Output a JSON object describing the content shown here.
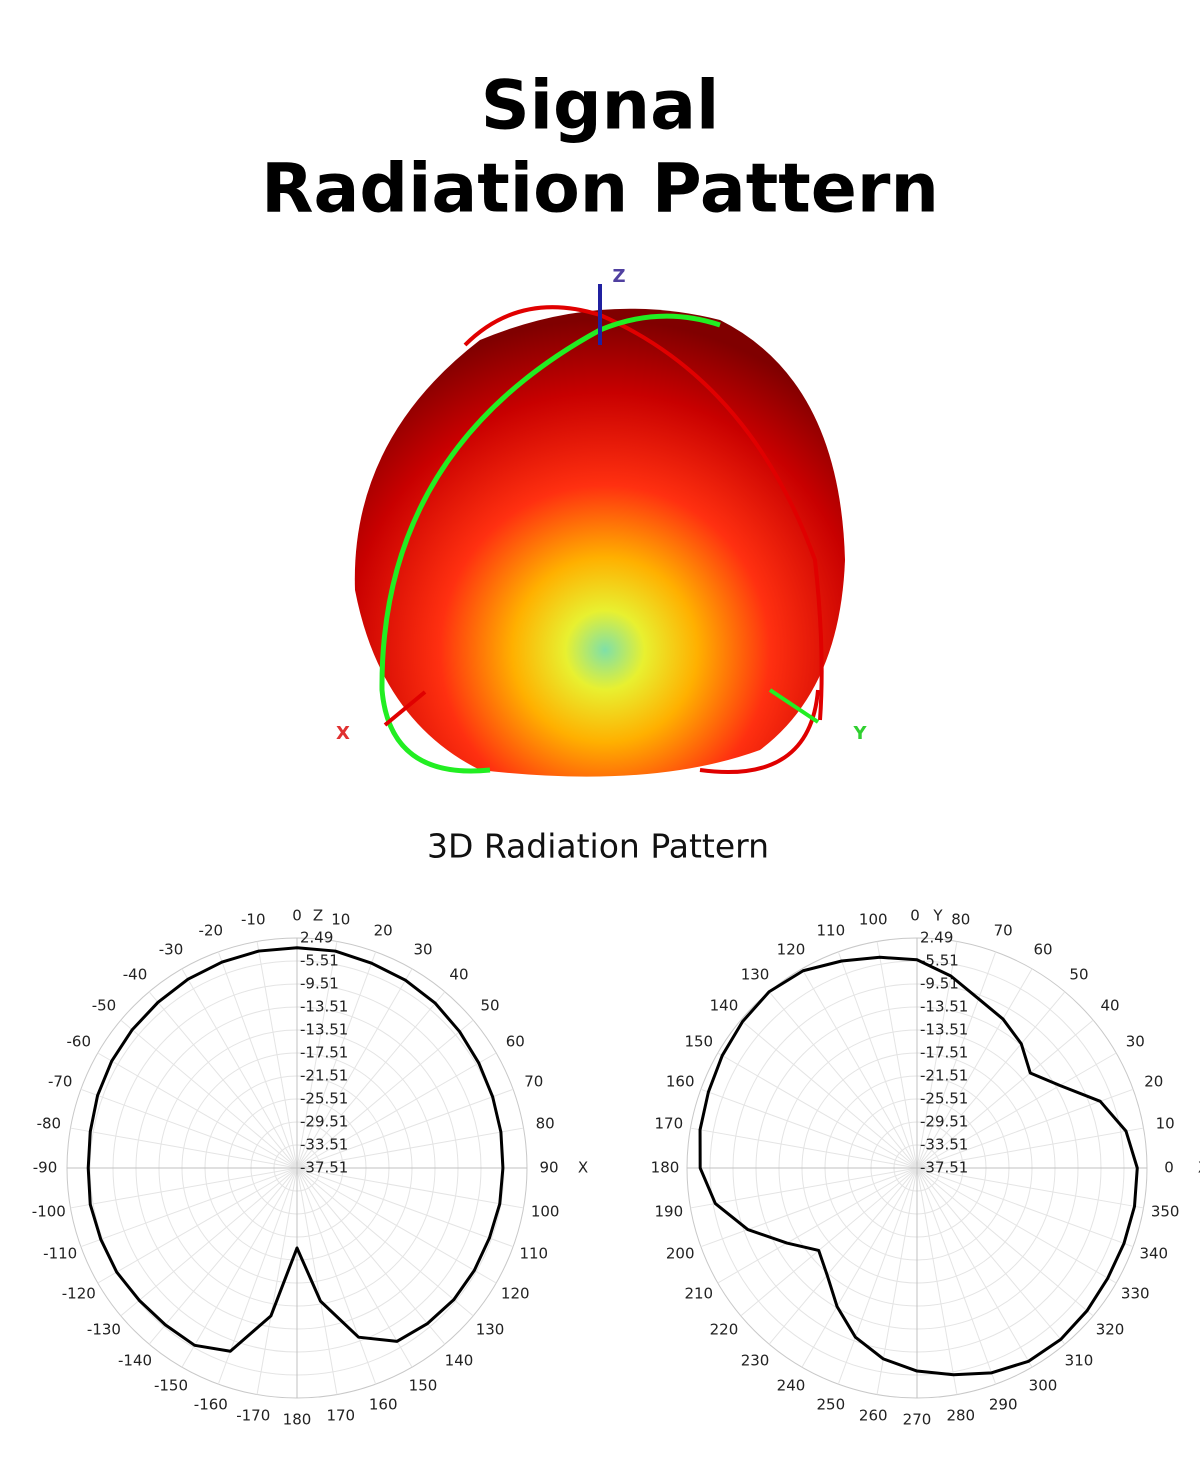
{
  "header": {
    "title_lines": [
      "Signal",
      "Radiation Pattern"
    ]
  },
  "figure": {
    "caption": "3D Radiation Pattern",
    "axis_labels": {
      "z": "Z",
      "x": "X",
      "y": "Y"
    }
  },
  "chart_data": [
    {
      "type": "polar",
      "zero": "top",
      "direction": "clockwise",
      "color": "#000000",
      "axis_labels": {
        "top": "Z",
        "right": "X"
      },
      "rlim": [
        -37.51,
        2.49
      ],
      "radial_labels": [
        "2.49",
        "-5.51",
        "-9.51",
        "-13.51",
        "-13.51",
        "-17.51",
        "-21.51",
        "-25.51",
        "-29.51",
        "-33.51",
        "-37.51"
      ],
      "angle_ticks": [
        0,
        10,
        20,
        30,
        40,
        50,
        60,
        70,
        80,
        90,
        100,
        110,
        120,
        130,
        140,
        150,
        160,
        170,
        180,
        -170,
        -160,
        -150,
        -140,
        -130,
        -120,
        -110,
        -100,
        -90,
        -80,
        -70,
        -60,
        -50,
        -40,
        -30,
        -20,
        -10
      ],
      "theta": [
        -170,
        -160,
        -150,
        -140,
        -130,
        -120,
        -110,
        -100,
        -90,
        -80,
        -70,
        -60,
        -50,
        -40,
        -30,
        -20,
        -10,
        0,
        10,
        20,
        30,
        40,
        50,
        60,
        70,
        80,
        90,
        100,
        110,
        120,
        130,
        140,
        150,
        160,
        170,
        180
      ],
      "r": [
        -11.4,
        -3.6,
        -1.9,
        -1.9,
        -1.7,
        -1.3,
        -1.2,
        -1.0,
        -1.2,
        -1.0,
        -0.6,
        -0.3,
        -0.1,
        0.1,
        0.4,
        0.6,
        0.8,
        0.8,
        0.8,
        0.4,
        0.2,
        -0.1,
        -0.6,
        -1.0,
        -1.3,
        -1.5,
        -1.7,
        -1.7,
        -1.9,
        -1.9,
        -1.9,
        -2.2,
        -2.7,
        -6.2,
        -14.0,
        -23.6
      ]
    },
    {
      "type": "polar",
      "zero": "right",
      "direction": "counterclockwise",
      "color": "#000000",
      "axis_labels": {
        "top": "Y",
        "right": "X"
      },
      "top_tick_label": "0",
      "rlim": [
        -37.51,
        2.49
      ],
      "radial_labels": [
        "2.49",
        "-5.51",
        "-9.51",
        "-13.51",
        "-13.51",
        "-17.51",
        "-21.51",
        "-25.51",
        "-29.51",
        "-33.51",
        "-37.51"
      ],
      "angle_ticks": [
        0,
        10,
        20,
        30,
        40,
        50,
        60,
        70,
        80,
        100,
        110,
        120,
        130,
        140,
        150,
        160,
        170,
        180,
        190,
        200,
        210,
        220,
        230,
        240,
        250,
        260,
        270,
        280,
        290,
        300,
        310,
        320,
        330,
        340,
        350
      ],
      "theta": [
        0,
        10,
        20,
        30,
        40,
        50,
        60,
        70,
        80,
        90,
        100,
        110,
        120,
        130,
        140,
        150,
        160,
        170,
        180,
        190,
        200,
        210,
        220,
        230,
        240,
        250,
        260,
        270,
        280,
        290,
        300,
        310,
        320,
        330,
        340,
        350
      ],
      "r": [
        0.8,
        -0.6,
        -3.6,
        -8.8,
        -11.8,
        -9.3,
        -7.6,
        -6.2,
        -3.6,
        -1.3,
        -0.3,
        0.8,
        2.1,
        2.5,
        2.1,
        1.6,
        1.1,
        0.8,
        0.2,
        -1.9,
        -6.2,
        -11.4,
        -15.2,
        -13.2,
        -9.7,
        -6.2,
        -3.8,
        -2.2,
        -1.0,
        0.4,
        1.3,
        1.4,
        1.1,
        0.8,
        0.8,
        0.9
      ]
    }
  ]
}
